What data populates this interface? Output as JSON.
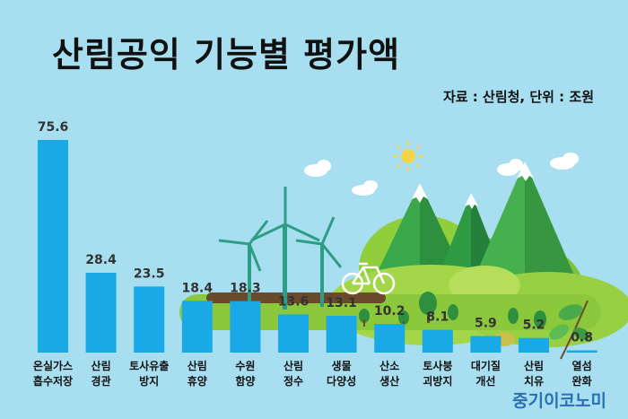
{
  "header": {
    "title": "산림공익 기능별 평가액",
    "source": "자료 : 산림청, 단위 : 조원",
    "brand": "중기이코노미"
  },
  "colors": {
    "bar": "#19a9e6",
    "background": "#a8dff0",
    "value_text": "#333333"
  },
  "chart_data": {
    "type": "bar",
    "title": "산림공익 기능별 평가액",
    "unit": "조원",
    "categories": [
      [
        "온실가스",
        "흡수저장"
      ],
      [
        "산림",
        "경관"
      ],
      [
        "토사유출",
        "방지"
      ],
      [
        "산림",
        "휴양"
      ],
      [
        "수원",
        "함양"
      ],
      [
        "산림",
        "정수"
      ],
      [
        "생물",
        "다양성"
      ],
      [
        "산소",
        "생산"
      ],
      [
        "토사붕",
        "괴방지"
      ],
      [
        "대기질",
        "개선"
      ],
      [
        "산림",
        "치유"
      ],
      [
        "열섬",
        "완화"
      ]
    ],
    "values": [
      75.6,
      28.4,
      23.5,
      18.4,
      18.3,
      13.6,
      13.1,
      10.2,
      8.1,
      5.9,
      5.2,
      0.8
    ],
    "value_labels": [
      "75.6",
      "28.4",
      "23.5",
      "18.4",
      "18.3",
      "13.6",
      "13.1",
      "10.2",
      "8.1",
      "5.9",
      "5.2",
      "0.8"
    ],
    "ylim": [
      0,
      75.6
    ],
    "grid": false,
    "legend": "none"
  }
}
